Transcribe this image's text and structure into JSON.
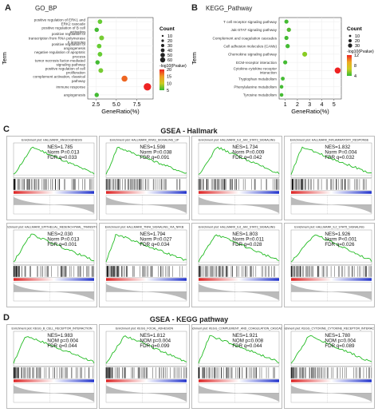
{
  "panels": {
    "a": {
      "letter": "A",
      "title": "GO_BP"
    },
    "b": {
      "letter": "B",
      "title": "KEGG_Pathway"
    },
    "c": {
      "letter": "C",
      "title": "GSEA - Hallmark"
    },
    "d": {
      "letter": "D",
      "title": "GSEA - KEGG pathway"
    }
  },
  "chart_data": [
    {
      "type": "scatter",
      "panel": "A",
      "title": "GO_BP",
      "xlabel": "GeneRatio(%)",
      "ylabel": "Term",
      "xticks": [
        "2.5",
        "5.0",
        "7.5"
      ],
      "xlim": [
        1.5,
        9.5
      ],
      "categories": [
        "positive regulation of ERK1 and ERK2 cascade",
        "positive regulation of B cell activation",
        "positive regulation of transcription from RNA polymerase II promoter",
        "positive regulation of angiogenesis",
        "negative regulation of apoptotic process",
        "tumor necrosis factor-mediated signaling pathway",
        "positive regulation of cell proliferation",
        "complement activation, classical pathway",
        "immune response",
        "angiogenesis"
      ],
      "points": [
        {
          "x": 3.0,
          "y": "positive regulation of ERK1 and ERK2 cascade",
          "count": 12,
          "logp": 6,
          "color": "#66cc33"
        },
        {
          "x": 2.6,
          "y": "positive regulation of B cell activation",
          "count": 10,
          "logp": 5,
          "color": "#44bb33"
        },
        {
          "x": 3.2,
          "y": "positive regulation of transcription from RNA polymerase II promoter",
          "count": 15,
          "logp": 7,
          "color": "#77cc33"
        },
        {
          "x": 2.9,
          "y": "positive regulation of angiogenesis",
          "count": 12,
          "logp": 6,
          "color": "#66cc33"
        },
        {
          "x": 3.0,
          "y": "negative regulation of apoptotic process",
          "count": 13,
          "logp": 6,
          "color": "#66cc33"
        },
        {
          "x": 2.7,
          "y": "tumor necrosis factor-mediated signaling pathway",
          "count": 10,
          "logp": 5,
          "color": "#44bb33"
        },
        {
          "x": 3.1,
          "y": "positive regulation of cell proliferation",
          "count": 14,
          "logp": 7,
          "color": "#77cc33"
        },
        {
          "x": 6.0,
          "y": "complement activation, classical pathway",
          "count": 30,
          "logp": 15,
          "color": "#ee6622"
        },
        {
          "x": 8.8,
          "y": "immune response",
          "count": 55,
          "logp": 22,
          "color": "#ee2222"
        },
        {
          "x": 2.6,
          "y": "angiogenesis",
          "count": 10,
          "logp": 5,
          "color": "#44bb33"
        }
      ],
      "legend": {
        "size_title": "Count",
        "sizes": [
          {
            "label": "10",
            "r": 1.2
          },
          {
            "label": "20",
            "r": 1.6
          },
          {
            "label": "30",
            "r": 2.0
          },
          {
            "label": "40",
            "r": 2.4
          },
          {
            "label": "50",
            "r": 2.8
          },
          {
            "label": "60",
            "r": 3.2
          }
        ],
        "color_title": "-log10(Pvalue)",
        "color_ticks": [
          "20",
          "15",
          "10",
          "5"
        ],
        "colors": [
          "#ee2222",
          "#ee9922",
          "#cccc22",
          "#33bb33"
        ]
      }
    },
    {
      "type": "scatter",
      "panel": "B",
      "title": "KEGG_Pathway",
      "xlabel": "GeneRatio(%)",
      "ylabel": "Term",
      "xticks": [
        "1",
        "2",
        "3",
        "4",
        "5"
      ],
      "xlim": [
        0.5,
        5.6
      ],
      "categories": [
        "T cell receptor signaling pathway",
        "Jak-STAT signaling pathway",
        "Complement and coagulation cascades",
        "Cell adhesion molecules (CAMs)",
        "Chemokine signaling pathway",
        "ECM-receptor interaction",
        "Cytokine-cytokine receptor interaction",
        "Tryptophan metabolism",
        "Phenylalanine metabolism",
        "Tyrosine metabolism"
      ],
      "points": [
        {
          "x": 1.1,
          "y": "T cell receptor signaling pathway",
          "count": 8,
          "logp": 3,
          "color": "#44bb33"
        },
        {
          "x": 1.3,
          "y": "Jak-STAT signaling pathway",
          "count": 9,
          "logp": 4,
          "color": "#55bb33"
        },
        {
          "x": 1.1,
          "y": "Complement and coagulation cascades",
          "count": 8,
          "logp": 3,
          "color": "#44bb33"
        },
        {
          "x": 1.2,
          "y": "Cell adhesion molecules (CAMs)",
          "count": 9,
          "logp": 3,
          "color": "#44bb33"
        },
        {
          "x": 2.6,
          "y": "Chemokine signaling pathway",
          "count": 15,
          "logp": 6,
          "color": "#88cc22"
        },
        {
          "x": 1.0,
          "y": "ECM-receptor interaction",
          "count": 8,
          "logp": 3,
          "color": "#44bb33"
        },
        {
          "x": 5.3,
          "y": "Cytokine-cytokine receptor interaction",
          "count": 30,
          "logp": 12,
          "color": "#ee2222"
        },
        {
          "x": 0.8,
          "y": "Tryptophan metabolism",
          "count": 6,
          "logp": 3,
          "color": "#44bb33"
        },
        {
          "x": 0.7,
          "y": "Phenylalanine metabolism",
          "count": 5,
          "logp": 3,
          "color": "#44bb33"
        },
        {
          "x": 0.7,
          "y": "Tyrosine metabolism",
          "count": 5,
          "logp": 3,
          "color": "#44bb33"
        }
      ],
      "legend": {
        "size_title": "Count",
        "sizes": [
          {
            "label": "10",
            "r": 1.4
          },
          {
            "label": "20",
            "r": 2.0
          },
          {
            "label": "30",
            "r": 2.6
          }
        ],
        "color_title": "-log10(Pvalue)",
        "color_ticks": [
          "12",
          "8",
          "4"
        ],
        "colors": [
          "#ee2222",
          "#eeaa22",
          "#cccc22",
          "#33bb33"
        ]
      }
    }
  ],
  "gsea_c": [
    {
      "header": "Enrichment plot: HALLMARK_ANGIOGENESIS",
      "nes": "NES=1.785",
      "p": "Norm P=0.013",
      "fdr": "FDR q=0.033"
    },
    {
      "header": "Enrichment plot: HALLMARK_KRAS_SIGNALING_UP",
      "nes": "NES=1.598",
      "p": "Norm P=0.038",
      "fdr": "FDR q=0.091"
    },
    {
      "header": "Enrichment plot: HALLMARK_IL6_JAK_STAT3_SIGNALING",
      "nes": "NES=1.734",
      "p": "Norm P=0.009",
      "fdr": "FDR q=0.042"
    },
    {
      "header": "Enrichment plot: HALLMARK_INFLAMMATORY_RESPONSE",
      "nes": "NES=1.832",
      "p": "Norm P=0.004",
      "fdr": "FDR q=0.032"
    },
    {
      "header": "Enrichment plot: HALLMARK_EPITHELIAL_MESENCHYMAL_TRANSITION",
      "nes": "NES=2.030",
      "p": "Norm P=0.013",
      "fdr": "FDR q=0.001"
    },
    {
      "header": "Enrichment plot: HALLMARK_TNFA_SIGNALING_VIA_NFKB",
      "nes": "NES=1.794",
      "p": "Norm P=0.027",
      "fdr": "FDR q=0.034"
    },
    {
      "header": "Enrichment plot: HALLMARK_IL6_JAK_STAT3_SIGNALING",
      "nes": "NES=1.803",
      "p": "Norm P=0.011",
      "fdr": "FDR q=0.028"
    },
    {
      "header": "Enrichment plot: HALLMARK_IL2_STAT5_SIGNALING",
      "nes": "NES=1.926",
      "p": "Norm P<0.001",
      "fdr": "FDR q=0.026"
    }
  ],
  "gsea_d": [
    {
      "header": "Enrichment plot: KEGG_B_CELL_RECEPTOR_INTERACTION",
      "nes": "NES=1.983",
      "p": "NOM p=0.004",
      "fdr": "FDR q=0.044"
    },
    {
      "header": "Enrichment plot: KEGG_FOCAL_ADHESION",
      "nes": "NES=1.812",
      "p": "NOM p=0.004",
      "fdr": "FDR q=0.099"
    },
    {
      "header": "Enrichment plot: KEGG_COMPLEMENT_AND_COAGULATION_CASCADES",
      "nes": "NES=1.921",
      "p": "NOM p=0.008",
      "fdr": "FDR q=0.044"
    },
    {
      "header": "Enrichment plot: KEGG_CYTOKINE_CYTOKINE_RECEPTOR_INTERACTIO",
      "nes": "NES=1.780",
      "p": "NOM p=0.004",
      "fdr": "FDR q=0.089"
    }
  ]
}
